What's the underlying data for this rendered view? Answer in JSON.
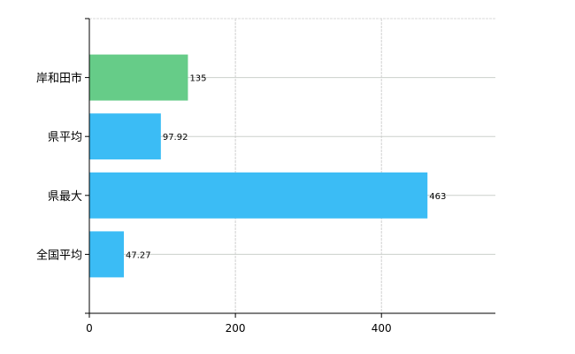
{
  "chart_data": {
    "type": "bar",
    "orientation": "horizontal",
    "categories": [
      "岸和田市",
      "県平均",
      "県最大",
      "全国平均"
    ],
    "values": [
      135,
      97.92,
      463,
      47.27
    ],
    "data_labels": [
      "135",
      "97.92",
      "463",
      "47.27"
    ],
    "bar_colors": [
      "#66cc88",
      "#3bbcf5",
      "#3bbcf5",
      "#3bbcf5"
    ],
    "xlim": [
      0,
      556
    ],
    "xticks": [
      0,
      200,
      400
    ],
    "tick_labels": [
      "0",
      "200",
      "400"
    ],
    "title": "",
    "xlabel": "",
    "ylabel": "",
    "grid": true,
    "legend": "none"
  }
}
